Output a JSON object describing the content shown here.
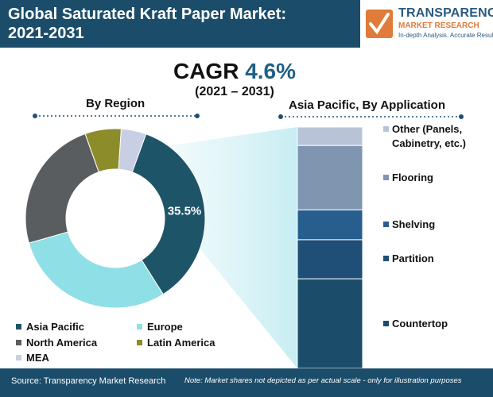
{
  "header": {
    "title_line1": "Global Saturated Kraft Paper Market:",
    "title_line2": "2021-2031"
  },
  "logo": {
    "name": "TRANSPARENCY",
    "sub": "MARKET RESEARCH",
    "tagline": "In-depth Analysis. Accurate Results"
  },
  "cagr": {
    "label": "CAGR",
    "value": "4.6%",
    "period": "(2021 – 2031)"
  },
  "colors": {
    "header": "#1b4d6a",
    "accent": "#e07b39",
    "asia_pacific": "#1e5468",
    "europe": "#8fdfe6",
    "north_america": "#5a5d60",
    "latin_america": "#8c8c2a",
    "mea": "#c8cfe4"
  },
  "chart_data": [
    {
      "type": "pie",
      "title": "By Region",
      "donut": true,
      "categories": [
        "Asia Pacific",
        "Europe",
        "North America",
        "Latin America",
        "MEA"
      ],
      "values": [
        35.5,
        29.5,
        24.0,
        6.5,
        4.5
      ],
      "value_labels": [
        "35.5%",
        "",
        "",
        "",
        ""
      ],
      "colors": [
        "#1e5468",
        "#8fdfe6",
        "#5a5d60",
        "#8c8c2a",
        "#c8cfe4"
      ],
      "start_angle_deg": 20,
      "legend": "bottom"
    },
    {
      "type": "bar",
      "stacked": true,
      "title": "Asia Pacific, By Application",
      "categories": [
        "Countertop",
        "Partition",
        "Shelving",
        "Flooring",
        "Other (Panels, Cabinetry, etc.)"
      ],
      "values": [
        39,
        17,
        13,
        28,
        8
      ],
      "colors": [
        "#1b4d6a",
        "#1f4e76",
        "#285e8e",
        "#8095b0",
        "#b9c3d8"
      ],
      "legend": "right"
    }
  ],
  "footer": {
    "source": "Source: Transparency Market Research",
    "note": "Note: Market shares not depicted as per actual scale - only for illustration purposes"
  }
}
